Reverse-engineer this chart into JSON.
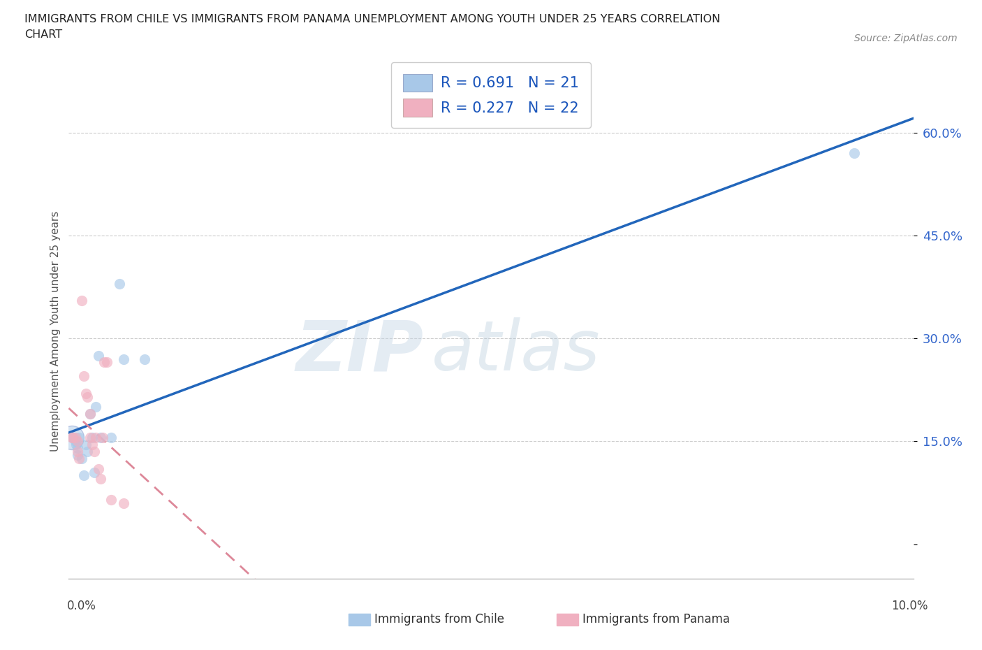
{
  "title_line1": "IMMIGRANTS FROM CHILE VS IMMIGRANTS FROM PANAMA UNEMPLOYMENT AMONG YOUTH UNDER 25 YEARS CORRELATION",
  "title_line2": "CHART",
  "source": "Source: ZipAtlas.com",
  "ylabel": "Unemployment Among Youth under 25 years",
  "ytick_vals": [
    0.0,
    0.15,
    0.3,
    0.45,
    0.6
  ],
  "ytick_labels": [
    "",
    "15.0%",
    "30.0%",
    "45.0%",
    "60.0%"
  ],
  "xlim": [
    0.0,
    0.1
  ],
  "ylim": [
    -0.05,
    0.67
  ],
  "chile_scatter_color": "#a8c8e8",
  "panama_scatter_color": "#f0b0c0",
  "chile_line_color": "#2266bb",
  "panama_line_color": "#dd8899",
  "ytick_color": "#3366cc",
  "R_chile": "0.691",
  "N_chile": "21",
  "R_panama": "0.227",
  "N_panama": "22",
  "legend_label_chile": "Immigrants from Chile",
  "legend_label_panama": "Immigrants from Panama",
  "watermark_big": "ZIP",
  "watermark_small": "atlas",
  "chile_points": [
    [
      0.0005,
      0.155
    ],
    [
      0.0008,
      0.15
    ],
    [
      0.0009,
      0.145
    ],
    [
      0.001,
      0.14
    ],
    [
      0.001,
      0.13
    ],
    [
      0.0012,
      0.155
    ],
    [
      0.0015,
      0.125
    ],
    [
      0.0018,
      0.1
    ],
    [
      0.002,
      0.145
    ],
    [
      0.0022,
      0.135
    ],
    [
      0.0025,
      0.19
    ],
    [
      0.0028,
      0.155
    ],
    [
      0.003,
      0.105
    ],
    [
      0.0032,
      0.2
    ],
    [
      0.0035,
      0.275
    ],
    [
      0.0038,
      0.155
    ],
    [
      0.005,
      0.155
    ],
    [
      0.006,
      0.38
    ],
    [
      0.0065,
      0.27
    ],
    [
      0.009,
      0.27
    ],
    [
      0.093,
      0.57
    ]
  ],
  "panama_points": [
    [
      0.0004,
      0.155
    ],
    [
      0.0005,
      0.155
    ],
    [
      0.0008,
      0.155
    ],
    [
      0.001,
      0.15
    ],
    [
      0.001,
      0.135
    ],
    [
      0.0012,
      0.125
    ],
    [
      0.0015,
      0.355
    ],
    [
      0.0018,
      0.245
    ],
    [
      0.002,
      0.22
    ],
    [
      0.0022,
      0.215
    ],
    [
      0.0025,
      0.19
    ],
    [
      0.0025,
      0.155
    ],
    [
      0.0028,
      0.145
    ],
    [
      0.003,
      0.135
    ],
    [
      0.0032,
      0.155
    ],
    [
      0.0035,
      0.11
    ],
    [
      0.0038,
      0.095
    ],
    [
      0.004,
      0.155
    ],
    [
      0.0042,
      0.265
    ],
    [
      0.0045,
      0.265
    ],
    [
      0.005,
      0.065
    ],
    [
      0.0065,
      0.06
    ]
  ]
}
